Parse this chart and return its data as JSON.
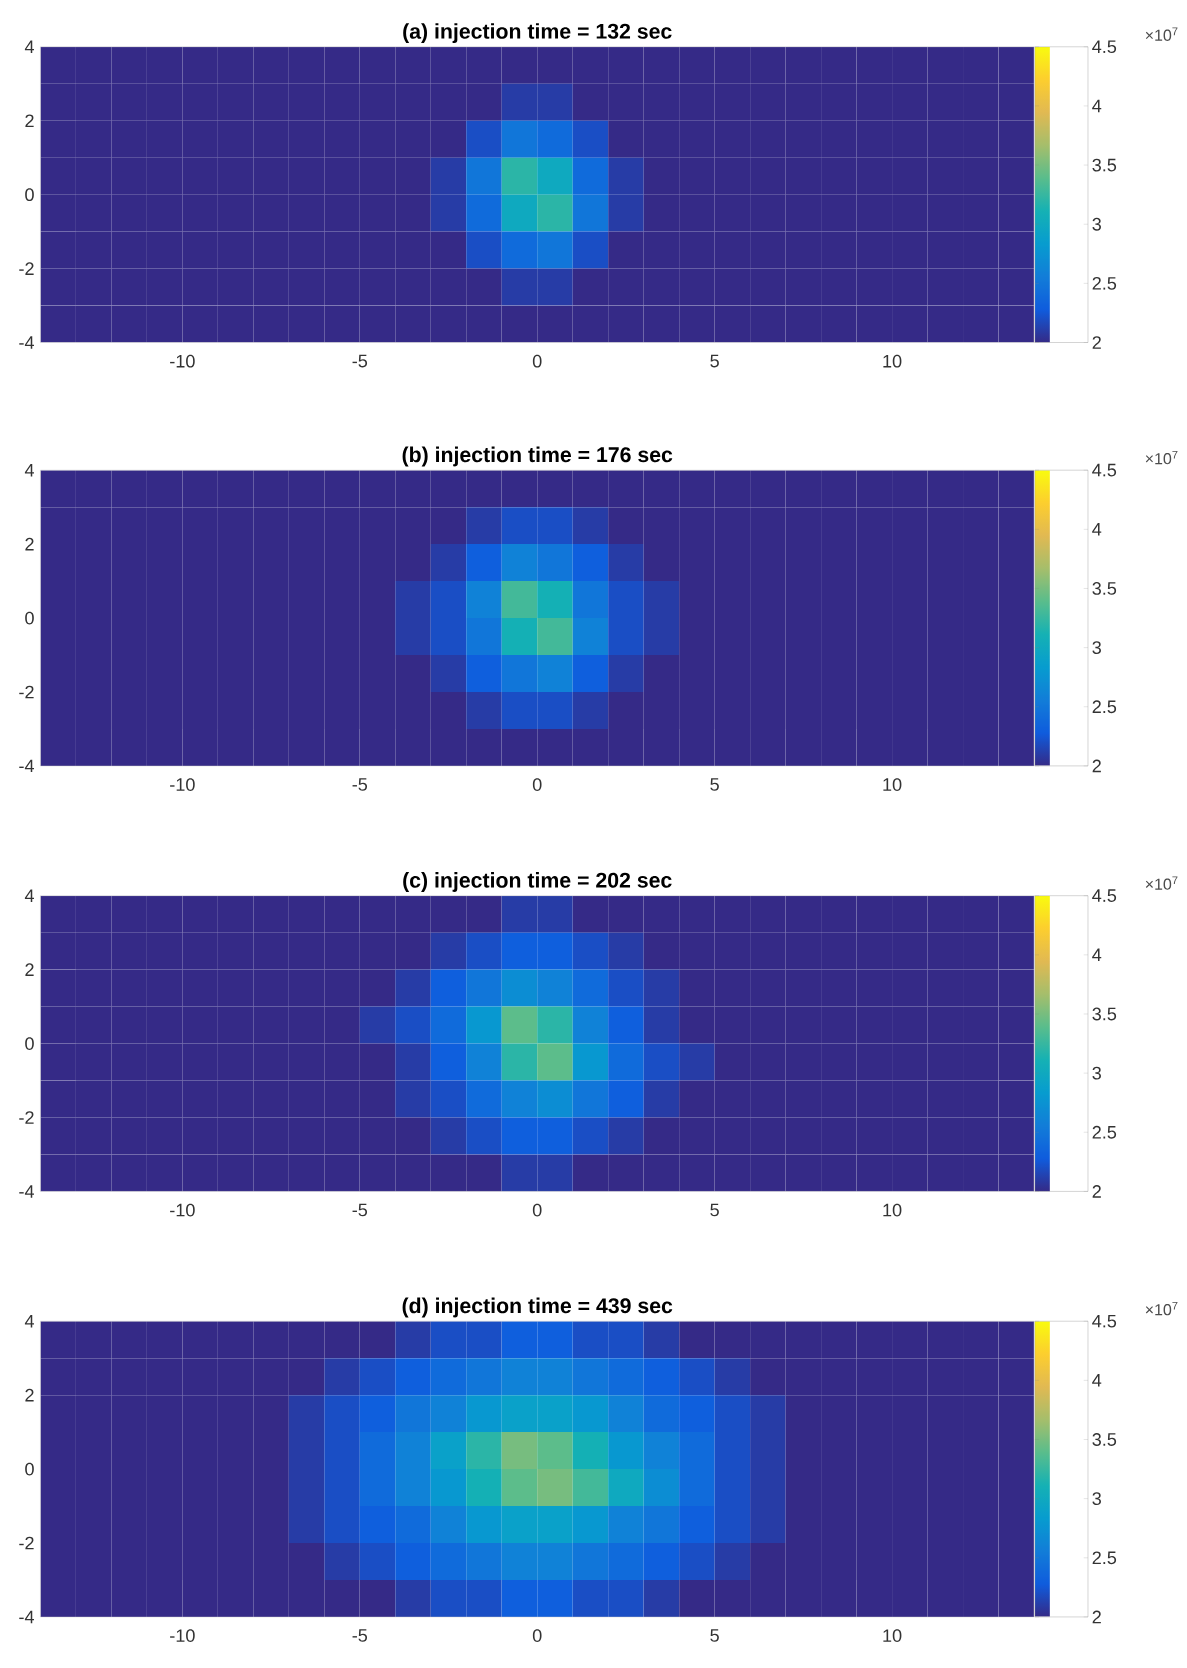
{
  "chart_data": [
    {
      "type": "heatmap",
      "title": "(a) injection time = 132 sec",
      "x": [
        -13.5,
        -12.5,
        -11.5,
        -10.5,
        -9.5,
        -8.5,
        -7.5,
        -6.5,
        -5.5,
        -4.5,
        -3.5,
        -2.5,
        -1.5,
        -0.5,
        0.5,
        1.5,
        2.5,
        3.5,
        4.5,
        5.5,
        6.5,
        7.5,
        8.5,
        9.5,
        10.5,
        11.5,
        12.5,
        13.5
      ],
      "y": [
        3.5,
        2.5,
        1.5,
        0.5,
        -0.5,
        -1.5,
        -2.5,
        -3.5
      ],
      "cells": [
        [
          2,
          2,
          2,
          2,
          2,
          2,
          2,
          2,
          2,
          2,
          2,
          2,
          2,
          2,
          2,
          2,
          2,
          2,
          2,
          2,
          2,
          2,
          2,
          2,
          2,
          2,
          2,
          2
        ],
        [
          2,
          2,
          2,
          2,
          2,
          2,
          2,
          2,
          2,
          2,
          2,
          2,
          2,
          2.1,
          2.1,
          2,
          2,
          2,
          2,
          2,
          2,
          2,
          2,
          2,
          2,
          2,
          2,
          2
        ],
        [
          2,
          2,
          2,
          2,
          2,
          2,
          2,
          2,
          2,
          2,
          2,
          2,
          2.2,
          2.5,
          2.4,
          2.2,
          2,
          2,
          2,
          2,
          2,
          2,
          2,
          2,
          2,
          2,
          2,
          2
        ],
        [
          2,
          2,
          2,
          2,
          2,
          2,
          2,
          2,
          2,
          2,
          2,
          2.1,
          2.5,
          3.2,
          3.0,
          2.4,
          2.1,
          2,
          2,
          2,
          2,
          2,
          2,
          2,
          2,
          2,
          2,
          2
        ],
        [
          2,
          2,
          2,
          2,
          2,
          2,
          2,
          2,
          2,
          2,
          2,
          2.1,
          2.4,
          3.0,
          3.2,
          2.5,
          2.1,
          2,
          2,
          2,
          2,
          2,
          2,
          2,
          2,
          2,
          2,
          2
        ],
        [
          2,
          2,
          2,
          2,
          2,
          2,
          2,
          2,
          2,
          2,
          2,
          2,
          2.2,
          2.4,
          2.5,
          2.2,
          2,
          2,
          2,
          2,
          2,
          2,
          2,
          2,
          2,
          2,
          2,
          2
        ],
        [
          2,
          2,
          2,
          2,
          2,
          2,
          2,
          2,
          2,
          2,
          2,
          2,
          2,
          2.1,
          2.1,
          2,
          2,
          2,
          2,
          2,
          2,
          2,
          2,
          2,
          2,
          2,
          2,
          2
        ],
        [
          2,
          2,
          2,
          2,
          2,
          2,
          2,
          2,
          2,
          2,
          2,
          2,
          2,
          2,
          2,
          2,
          2,
          2,
          2,
          2,
          2,
          2,
          2,
          2,
          2,
          2,
          2,
          2
        ]
      ],
      "clim": [
        2,
        4.5
      ],
      "cticks": [
        2,
        2.5,
        3,
        3.5,
        4,
        4.5
      ],
      "xlim": [
        -14,
        14
      ],
      "ylim": [
        -4,
        4
      ],
      "xticks": [
        -10,
        -5,
        0,
        5,
        10
      ],
      "yticks": [
        -4,
        -2,
        0,
        2,
        4
      ],
      "annotations": [
        "×10$^{7}$"
      ]
    },
    {
      "type": "heatmap",
      "title": "(b) injection time = 176 sec",
      "x": [
        -13.5,
        -12.5,
        -11.5,
        -10.5,
        -9.5,
        -8.5,
        -7.5,
        -6.5,
        -5.5,
        -4.5,
        -3.5,
        -2.5,
        -1.5,
        -0.5,
        0.5,
        1.5,
        2.5,
        3.5,
        4.5,
        5.5,
        6.5,
        7.5,
        8.5,
        9.5,
        10.5,
        11.5,
        12.5,
        13.5
      ],
      "y": [
        3.5,
        2.5,
        1.5,
        0.5,
        -0.5,
        -1.5,
        -2.5,
        -3.5
      ],
      "cells": [
        [
          2,
          2,
          2,
          2,
          2,
          2,
          2,
          2,
          2,
          2,
          2,
          2,
          2,
          2,
          2,
          2,
          2,
          2,
          2,
          2,
          2,
          2,
          2,
          2,
          2,
          2,
          2,
          2
        ],
        [
          2,
          2,
          2,
          2,
          2,
          2,
          2,
          2,
          2,
          2,
          2,
          2,
          2.1,
          2.2,
          2.2,
          2.1,
          2,
          2,
          2,
          2,
          2,
          2,
          2,
          2,
          2,
          2,
          2,
          2
        ],
        [
          2,
          2,
          2,
          2,
          2,
          2,
          2,
          2,
          2,
          2,
          2,
          2.1,
          2.3,
          2.6,
          2.5,
          2.3,
          2.1,
          2,
          2,
          2,
          2,
          2,
          2,
          2,
          2,
          2,
          2,
          2
        ],
        [
          2,
          2,
          2,
          2,
          2,
          2,
          2,
          2,
          2,
          2,
          2.1,
          2.2,
          2.6,
          3.3,
          3.1,
          2.5,
          2.2,
          2.1,
          2,
          2,
          2,
          2,
          2,
          2,
          2,
          2,
          2,
          2
        ],
        [
          2,
          2,
          2,
          2,
          2,
          2,
          2,
          2,
          2,
          2,
          2.1,
          2.2,
          2.5,
          3.1,
          3.3,
          2.6,
          2.2,
          2.1,
          2,
          2,
          2,
          2,
          2,
          2,
          2,
          2,
          2,
          2
        ],
        [
          2,
          2,
          2,
          2,
          2,
          2,
          2,
          2,
          2,
          2,
          2,
          2.1,
          2.3,
          2.5,
          2.6,
          2.3,
          2.1,
          2,
          2,
          2,
          2,
          2,
          2,
          2,
          2,
          2,
          2,
          2
        ],
        [
          2,
          2,
          2,
          2,
          2,
          2,
          2,
          2,
          2,
          2,
          2,
          2,
          2.1,
          2.2,
          2.2,
          2.1,
          2,
          2,
          2,
          2,
          2,
          2,
          2,
          2,
          2,
          2,
          2,
          2
        ],
        [
          2,
          2,
          2,
          2,
          2,
          2,
          2,
          2,
          2,
          2,
          2,
          2,
          2,
          2,
          2,
          2,
          2,
          2,
          2,
          2,
          2,
          2,
          2,
          2,
          2,
          2,
          2,
          2
        ]
      ],
      "clim": [
        2,
        4.5
      ],
      "cticks": [
        2,
        2.5,
        3,
        3.5,
        4,
        4.5
      ],
      "xlim": [
        -14,
        14
      ],
      "ylim": [
        -4,
        4
      ],
      "xticks": [
        -10,
        -5,
        0,
        5,
        10
      ],
      "yticks": [
        -4,
        -2,
        0,
        2,
        4
      ],
      "annotations": [
        "×10$^{7}$"
      ]
    },
    {
      "type": "heatmap",
      "title": "(c) injection time = 202 sec",
      "x": [
        -13.5,
        -12.5,
        -11.5,
        -10.5,
        -9.5,
        -8.5,
        -7.5,
        -6.5,
        -5.5,
        -4.5,
        -3.5,
        -2.5,
        -1.5,
        -0.5,
        0.5,
        1.5,
        2.5,
        3.5,
        4.5,
        5.5,
        6.5,
        7.5,
        8.5,
        9.5,
        10.5,
        11.5,
        12.5,
        13.5
      ],
      "y": [
        3.5,
        2.5,
        1.5,
        0.5,
        -0.5,
        -1.5,
        -2.5,
        -3.5
      ],
      "cells": [
        [
          2,
          2,
          2,
          2,
          2,
          2,
          2,
          2,
          2,
          2,
          2,
          2,
          2,
          2.1,
          2.1,
          2,
          2,
          2,
          2,
          2,
          2,
          2,
          2,
          2,
          2,
          2,
          2,
          2
        ],
        [
          2,
          2,
          2,
          2,
          2,
          2,
          2,
          2,
          2,
          2,
          2,
          2.1,
          2.2,
          2.3,
          2.3,
          2.2,
          2.1,
          2,
          2,
          2,
          2,
          2,
          2,
          2,
          2,
          2,
          2,
          2
        ],
        [
          2,
          2,
          2,
          2,
          2,
          2,
          2,
          2,
          2,
          2,
          2.1,
          2.3,
          2.5,
          2.7,
          2.6,
          2.4,
          2.2,
          2.1,
          2,
          2,
          2,
          2,
          2,
          2,
          2,
          2,
          2,
          2
        ],
        [
          2,
          2,
          2,
          2,
          2,
          2,
          2,
          2,
          2,
          2.1,
          2.2,
          2.4,
          2.8,
          3.4,
          3.2,
          2.6,
          2.3,
          2.1,
          2,
          2,
          2,
          2,
          2,
          2,
          2,
          2,
          2,
          2
        ],
        [
          2,
          2,
          2,
          2,
          2,
          2,
          2,
          2,
          2,
          2,
          2.1,
          2.3,
          2.6,
          3.2,
          3.4,
          2.8,
          2.4,
          2.2,
          2.1,
          2,
          2,
          2,
          2,
          2,
          2,
          2,
          2,
          2
        ],
        [
          2,
          2,
          2,
          2,
          2,
          2,
          2,
          2,
          2,
          2,
          2.1,
          2.2,
          2.4,
          2.6,
          2.7,
          2.5,
          2.3,
          2.1,
          2,
          2,
          2,
          2,
          2,
          2,
          2,
          2,
          2,
          2
        ],
        [
          2,
          2,
          2,
          2,
          2,
          2,
          2,
          2,
          2,
          2,
          2,
          2.1,
          2.2,
          2.3,
          2.3,
          2.2,
          2.1,
          2,
          2,
          2,
          2,
          2,
          2,
          2,
          2,
          2,
          2,
          2
        ],
        [
          2,
          2,
          2,
          2,
          2,
          2,
          2,
          2,
          2,
          2,
          2,
          2,
          2,
          2.1,
          2.1,
          2,
          2,
          2,
          2,
          2,
          2,
          2,
          2,
          2,
          2,
          2,
          2,
          2
        ]
      ],
      "clim": [
        2,
        4.5
      ],
      "cticks": [
        2,
        2.5,
        3,
        3.5,
        4,
        4.5
      ],
      "xlim": [
        -14,
        14
      ],
      "ylim": [
        -4,
        4
      ],
      "xticks": [
        -10,
        -5,
        0,
        5,
        10
      ],
      "yticks": [
        -4,
        -2,
        0,
        2,
        4
      ],
      "annotations": [
        "×10$^{7}$"
      ]
    },
    {
      "type": "heatmap",
      "title": "(d) injection time = 439 sec",
      "x": [
        -13.5,
        -12.5,
        -11.5,
        -10.5,
        -9.5,
        -8.5,
        -7.5,
        -6.5,
        -5.5,
        -4.5,
        -3.5,
        -2.5,
        -1.5,
        -0.5,
        0.5,
        1.5,
        2.5,
        3.5,
        4.5,
        5.5,
        6.5,
        7.5,
        8.5,
        9.5,
        10.5,
        11.5,
        12.5,
        13.5
      ],
      "y": [
        3.5,
        2.5,
        1.5,
        0.5,
        -0.5,
        -1.5,
        -2.5,
        -3.5
      ],
      "cells": [
        [
          2,
          2,
          2,
          2,
          2,
          2,
          2,
          2,
          2,
          2,
          2.1,
          2.2,
          2.2,
          2.3,
          2.3,
          2.2,
          2.2,
          2.1,
          2,
          2,
          2,
          2,
          2,
          2,
          2,
          2,
          2,
          2
        ],
        [
          2,
          2,
          2,
          2,
          2,
          2,
          2,
          2,
          2.1,
          2.2,
          2.3,
          2.4,
          2.5,
          2.6,
          2.6,
          2.5,
          2.4,
          2.3,
          2.2,
          2.1,
          2,
          2,
          2,
          2,
          2,
          2,
          2,
          2
        ],
        [
          2,
          2,
          2,
          2,
          2,
          2,
          2,
          2.1,
          2.2,
          2.3,
          2.5,
          2.6,
          2.8,
          2.9,
          2.9,
          2.8,
          2.6,
          2.4,
          2.3,
          2.2,
          2.1,
          2,
          2,
          2,
          2,
          2,
          2,
          2
        ],
        [
          2,
          2,
          2,
          2,
          2,
          2,
          2,
          2.1,
          2.2,
          2.4,
          2.6,
          2.9,
          3.2,
          3.5,
          3.4,
          3.1,
          2.8,
          2.6,
          2.4,
          2.2,
          2.1,
          2,
          2,
          2,
          2,
          2,
          2,
          2
        ],
        [
          2,
          2,
          2,
          2,
          2,
          2,
          2,
          2.1,
          2.2,
          2.4,
          2.6,
          2.8,
          3.1,
          3.4,
          3.5,
          3.3,
          3.0,
          2.7,
          2.4,
          2.2,
          2.1,
          2,
          2,
          2,
          2,
          2,
          2,
          2
        ],
        [
          2,
          2,
          2,
          2,
          2,
          2,
          2,
          2.1,
          2.2,
          2.3,
          2.4,
          2.6,
          2.8,
          2.9,
          2.9,
          2.8,
          2.6,
          2.5,
          2.3,
          2.2,
          2.1,
          2,
          2,
          2,
          2,
          2,
          2,
          2
        ],
        [
          2,
          2,
          2,
          2,
          2,
          2,
          2,
          2,
          2.1,
          2.2,
          2.3,
          2.4,
          2.5,
          2.6,
          2.6,
          2.5,
          2.4,
          2.3,
          2.2,
          2.1,
          2,
          2,
          2,
          2,
          2,
          2,
          2,
          2
        ],
        [
          2,
          2,
          2,
          2,
          2,
          2,
          2,
          2,
          2,
          2,
          2.1,
          2.2,
          2.2,
          2.3,
          2.3,
          2.2,
          2.2,
          2.1,
          2,
          2,
          2,
          2,
          2,
          2,
          2,
          2,
          2,
          2
        ]
      ],
      "clim": [
        2,
        4.5
      ],
      "cticks": [
        2,
        2.5,
        3,
        3.5,
        4,
        4.5
      ],
      "xlim": [
        -14,
        14
      ],
      "ylim": [
        -4,
        4
      ],
      "xticks": [
        -10,
        -5,
        0,
        5,
        10
      ],
      "yticks": [
        -4,
        -2,
        0,
        2,
        4
      ],
      "annotations": [
        "×10$^{7}$"
      ]
    }
  ]
}
